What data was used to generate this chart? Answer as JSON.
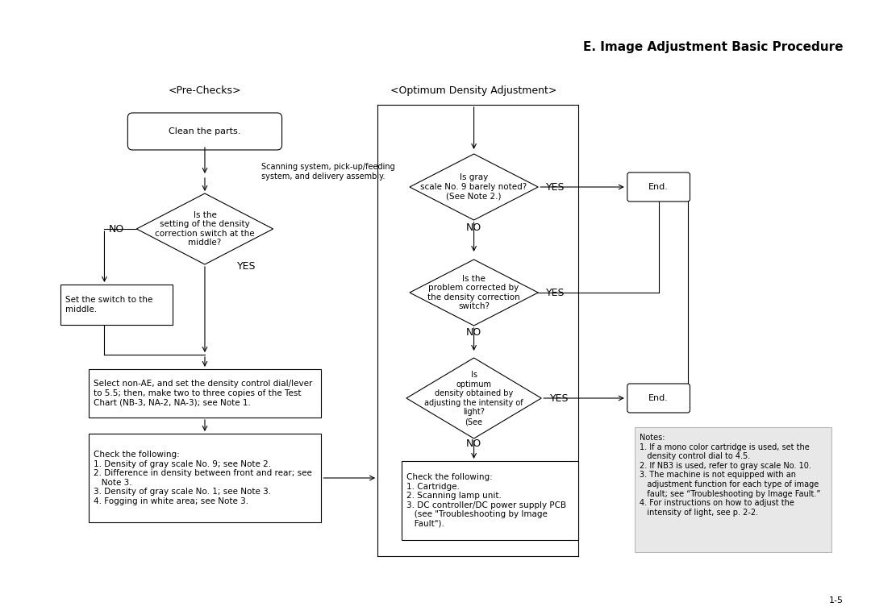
{
  "title": "E. Image Adjustment Basic Procedure",
  "page_num": "1-5",
  "bg_color": "#ffffff",
  "pre_checks_label": "<Pre-Checks>",
  "optimum_label": "<Optimum Density Adjustment>",
  "notes_text": "Notes:\n1. If a mono color cartridge is used, set the\n   density control dial to 4.5.\n2. If NB3 is used, refer to gray scale No. 10.\n3. The machine is not equipped with an\n   adjustment function for each type of image\n   fault; see “Troubleshooting by Image Fault.”\n4. For instructions on how to adjust the\n   intensity of light, see p. 2-2.",
  "clean_text": "Clean the parts.",
  "scanning_note": "Scanning system, pick-up/feeding\nsystem, and delivery assembly.",
  "density_diamond_text": "Is the\nsetting of the density\ncorrection switch at the\nmiddle?",
  "set_switch_text": "Set the switch to the\nmiddle.",
  "select_nonae_text": "Select non-AE, and set the density control dial/lever\nto 5.5; then, make two to three copies of the Test\nChart (NB-3, NA-2, NA-3); see Note 1.",
  "check1_text": "Check the following:\n1. Density of gray scale No. 9; see Note 2.\n2. Difference in density between front and rear; see\n   Note 3.\n3. Density of gray scale No. 1; see Note 3.\n4. Fogging in white area; see Note 3.",
  "is_gray_text": "Is gray\nscale No. 9 barely noted?\n(See Note 2.)",
  "is_problem_text": "Is the\nproblem corrected by\nthe density correction\nswitch?",
  "is_optimum_text": "Is\noptimum\ndensity obtained by\nadjusting the intensity of\nlight?\n(See",
  "check2_text": "Check the following:\n1. Cartridge.\n2. Scanning lamp unit.\n3. DC controller/DC power supply PCB\n   (see \"Troubleshooting by Image\n   Fault\").",
  "end_text": "End."
}
